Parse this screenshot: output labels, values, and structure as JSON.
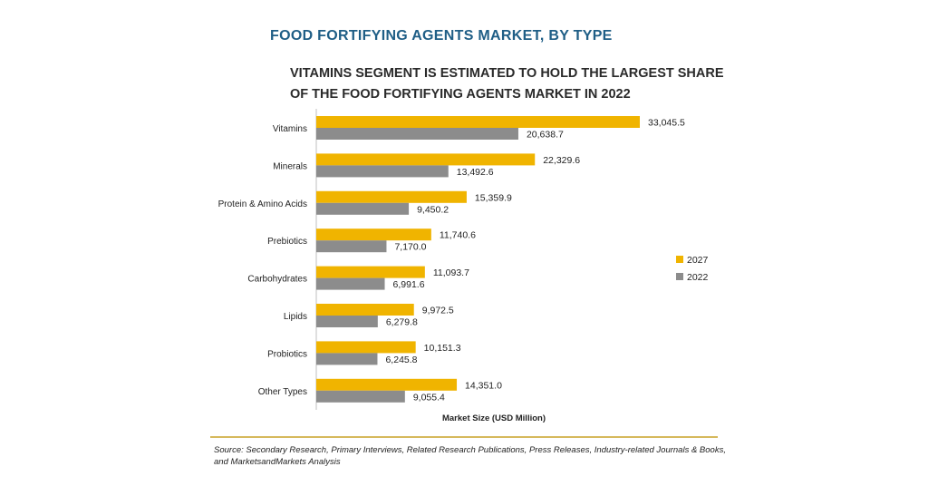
{
  "chart_data": {
    "type": "bar",
    "orientation": "horizontal",
    "title": "FOOD FORTIFYING AGENTS MARKET, BY TYPE",
    "subtitle": "VITAMINS SEGMENT IS ESTIMATED TO HOLD THE LARGEST SHARE OF THE FOOD FORTIFYING AGENTS MARKET IN 2022",
    "xlabel": "Market Size (USD Million)",
    "ylabel": "",
    "categories": [
      "Vitamins",
      "Minerals",
      "Protein & Amino Acids",
      "Prebiotics",
      "Carbohydrates",
      "Lipids",
      "Probiotics",
      "Other Types"
    ],
    "series": [
      {
        "name": "2027",
        "color": "#f0b400",
        "values": [
          33045.5,
          22329.6,
          15359.9,
          11740.6,
          11093.7,
          9972.5,
          10151.3,
          14351.0
        ],
        "labels": [
          "33,045.5",
          "22,329.6",
          "15,359.9",
          "11,740.6",
          "11,093.7",
          "9,972.5",
          "10,151.3",
          "14,351.0"
        ]
      },
      {
        "name": "2022",
        "color": "#8c8c8c",
        "values": [
          20638.7,
          13492.6,
          9450.2,
          7170.0,
          6991.6,
          6279.8,
          6245.8,
          9055.4
        ],
        "labels": [
          "20,638.7",
          "13,492.6",
          "9,450.2",
          "7,170.0",
          "6,991.6",
          "6,279.8",
          "6,245.8",
          "9,055.4"
        ]
      }
    ],
    "xlim": [
      0,
      33045.5
    ],
    "legend_position": "right",
    "grid": false
  },
  "source": "Source: Secondary Research, Primary Interviews, Related Research Publications, Press Releases, Industry-related Journals & Books, and MarketsandMarkets Analysis",
  "colors": {
    "title": "#1f5e86",
    "divider": "#c9a227"
  }
}
